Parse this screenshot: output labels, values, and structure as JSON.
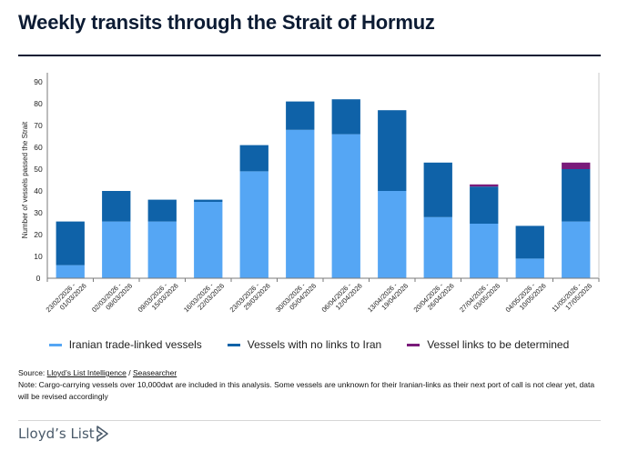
{
  "header": {
    "title": "Weekly transits through the Strait of Hormuz"
  },
  "chart_data": {
    "type": "bar",
    "stacked": true,
    "ylabel": "Number of vessels passed the Strait",
    "xlabel": "",
    "ylim": [
      0,
      90
    ],
    "yticks": [
      0,
      10,
      20,
      30,
      40,
      50,
      60,
      70,
      80,
      90
    ],
    "grid": false,
    "legend_position": "bottom",
    "categories": [
      "23/02/2026 - 01/03/2026",
      "02/03/2026 - 08/03/2026",
      "09/03/2026 - 15/03/2026",
      "16/03/2026 - 22/03/2026",
      "23/03/2026 - 29/03/2026",
      "30/03/2026 - 05/04/2026",
      "06/04/2026 - 12/04/2026",
      "13/04/2026 - 19/04/2026",
      "20/04/2026 - 26/04/2026",
      "27/04/2026 - 03/05/2026",
      "04/05/2026 - 10/05/2026",
      "11/05/2026 - 17/05/2026"
    ],
    "series": [
      {
        "name": "Iranian trade-linked vessels",
        "color": "#55a6f4",
        "values": [
          6,
          26,
          26,
          35,
          49,
          68,
          66,
          40,
          28,
          25,
          9,
          26
        ]
      },
      {
        "name": "Vessels with no links to Iran",
        "color": "#0f62a8",
        "values": [
          20,
          14,
          10,
          1,
          12,
          13,
          16,
          37,
          25,
          17,
          15,
          24
        ]
      },
      {
        "name": "Vessel links to be determined",
        "color": "#7a1b7a",
        "values": [
          0,
          0,
          0,
          0,
          0,
          0,
          0,
          0,
          0,
          1,
          0,
          3
        ]
      }
    ]
  },
  "footer": {
    "source_prefix": "Source: ",
    "source_link_1": "Lloyd’s List Intelligence",
    "source_sep": " / ",
    "source_link_2": "Seasearcher",
    "note": "Note: Cargo-carrying vessels over 10,000dwt are included in this analysis. Some vessels are unknown for their Iranian-links as their next port of call is not clear yet, data will be revised accordingly",
    "logo_text": "Lloyd’s List",
    "logo_icon": "lloyds-arrow-icon",
    "logo_color": "#4a5a6a"
  }
}
